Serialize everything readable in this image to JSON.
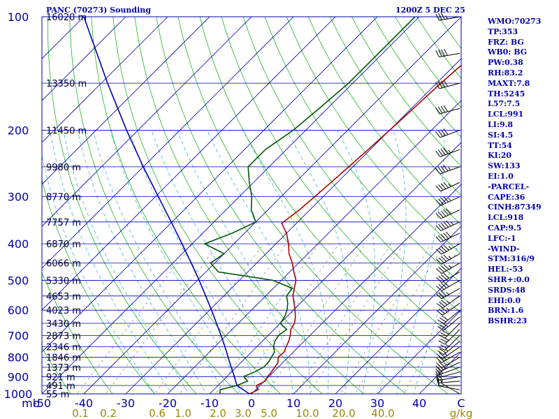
{
  "header": {
    "title": "PANC (70273) Sounding",
    "time": "1200Z  5 DEC 25"
  },
  "indices": [
    "WMO:70273",
    "TP:353",
    "FRZ: BG",
    "WB0: BG",
    "PW:0.38",
    "RH:83.2",
    "MAXT:7.8",
    "TH:5245",
    "L57:7.5",
    "LCL:991",
    "LI:9.8",
    "SI:4.5",
    "TT:54",
    "KI:20",
    "SW:133",
    "EI:1.0",
    "-PARCEL-",
    "CAPE:36",
    "CINH:87349",
    "LCL:918",
    "CAP:9.5",
    "LFC:-1",
    "-WIND-",
    "STM:316/9",
    "HEL:-53",
    "SHR+:0.0",
    "SRDS:48",
    "EHI:0.0",
    "BRN:1.6",
    "BSHR:23"
  ],
  "colors": {
    "isobar": "#0000aa",
    "isotherm": "#0000aa",
    "dry_adiabat": "#00aa00",
    "moist_adiabat": "#22aacc",
    "mixing_ratio": "#777777",
    "temperature": "#aa0000",
    "dewpoint": "#005500",
    "parcel": "#0000aa",
    "wind_barb": "#000000",
    "axis_text": "#0000aa",
    "mixing_text": "#998800"
  },
  "chart_data": {
    "type": "skew-t log-p",
    "xunit": "C",
    "pressure_range": [
      1000,
      100
    ],
    "temperature_range": [
      -50,
      50
    ],
    "pressure_ticks": [
      100,
      200,
      300,
      400,
      500,
      600,
      700,
      800,
      900,
      1000
    ],
    "temperature_ticks": [
      "-50",
      "-40",
      "-30",
      "-20",
      "-10",
      "0",
      "10",
      "20",
      "30",
      "40"
    ],
    "axis_corner_labels": {
      "left": "mb",
      "right": "C"
    },
    "height_labels": [
      {
        "p": 100,
        "label": "16020 m"
      },
      {
        "p": 150,
        "label": "13350 m"
      },
      {
        "p": 200,
        "label": "11450 m"
      },
      {
        "p": 250,
        "label": "9980 m"
      },
      {
        "p": 300,
        "label": "8770 m"
      },
      {
        "p": 350,
        "label": "7757 m"
      },
      {
        "p": 400,
        "label": "6870 m"
      },
      {
        "p": 450,
        "label": "6066 m"
      },
      {
        "p": 500,
        "label": "5330 m"
      },
      {
        "p": 550,
        "label": "4653 m"
      },
      {
        "p": 600,
        "label": "4023 m"
      },
      {
        "p": 650,
        "label": "3430 m"
      },
      {
        "p": 700,
        "label": "2873 m"
      },
      {
        "p": 750,
        "label": "2346 m"
      },
      {
        "p": 800,
        "label": "1846 m"
      },
      {
        "p": 850,
        "label": "1373 m"
      },
      {
        "p": 900,
        "label": "921 m"
      },
      {
        "p": 950,
        "label": "491 m"
      },
      {
        "p": 1000,
        "label": "55 m"
      }
    ],
    "mixing_ratio_labels": [
      "0.1",
      "0.2",
      "0.6",
      "1.0",
      "2.0",
      "3.0",
      "5.0",
      "10.0",
      "20.0",
      "40.0"
    ],
    "mixing_ratio_unit": "g/kg",
    "series": [
      {
        "name": "temperature",
        "points": [
          [
            1000,
            -0.5
          ],
          [
            975,
            0.6
          ],
          [
            950,
            -0.8
          ],
          [
            925,
            0.2
          ],
          [
            900,
            -0.3
          ],
          [
            875,
            -0.5
          ],
          [
            850,
            -0.8
          ],
          [
            825,
            -1.2
          ],
          [
            800,
            -2.4
          ],
          [
            775,
            -2.2
          ],
          [
            750,
            -3.0
          ],
          [
            725,
            -3.7
          ],
          [
            700,
            -4.7
          ],
          [
            675,
            -6.0
          ],
          [
            650,
            -6.6
          ],
          [
            625,
            -7.9
          ],
          [
            600,
            -9.6
          ],
          [
            575,
            -11.5
          ],
          [
            550,
            -13.5
          ],
          [
            525,
            -15.0
          ],
          [
            500,
            -16.5
          ],
          [
            475,
            -19.0
          ],
          [
            450,
            -21.5
          ],
          [
            425,
            -24.5
          ],
          [
            400,
            -27.0
          ],
          [
            375,
            -30.0
          ],
          [
            353,
            -33.5
          ],
          [
            325,
            -32.5
          ],
          [
            300,
            -32.0
          ],
          [
            275,
            -31.5
          ],
          [
            250,
            -31.0
          ],
          [
            225,
            -30.5
          ],
          [
            200,
            -30.0
          ],
          [
            175,
            -29.5
          ],
          [
            150,
            -29.0
          ],
          [
            125,
            -28.0
          ],
          [
            100,
            -27.0
          ]
        ]
      },
      {
        "name": "dewpoint",
        "points": [
          [
            1000,
            -7.5
          ],
          [
            975,
            -8.5
          ],
          [
            950,
            -5.5
          ],
          [
            925,
            -4.0
          ],
          [
            900,
            -6.0
          ],
          [
            875,
            -4.5
          ],
          [
            850,
            -3.5
          ],
          [
            825,
            -3.5
          ],
          [
            800,
            -4.0
          ],
          [
            775,
            -4.5
          ],
          [
            750,
            -6.0
          ],
          [
            725,
            -7.0
          ],
          [
            700,
            -7.5
          ],
          [
            675,
            -7.0
          ],
          [
            650,
            -10.0
          ],
          [
            625,
            -10.5
          ],
          [
            600,
            -11.5
          ],
          [
            575,
            -13.0
          ],
          [
            550,
            -15.0
          ],
          [
            525,
            -15.5
          ],
          [
            500,
            -22.0
          ],
          [
            475,
            -37.0
          ],
          [
            450,
            -41.0
          ],
          [
            425,
            -40.0
          ],
          [
            400,
            -47.0
          ],
          [
            375,
            -43.0
          ],
          [
            350,
            -40.0
          ],
          [
            325,
            -44.0
          ],
          [
            300,
            -47.0
          ],
          [
            275,
            -51.0
          ],
          [
            250,
            -55.0
          ],
          [
            225,
            -55.0
          ],
          [
            200,
            -53.0
          ],
          [
            175,
            -52.0
          ],
          [
            150,
            -51.0
          ],
          [
            125,
            -51.0
          ],
          [
            100,
            -51.0
          ]
        ]
      },
      {
        "name": "parcel",
        "points": [
          [
            1000,
            -0.5
          ],
          [
            950,
            -5.5
          ],
          [
            900,
            -8.2
          ],
          [
            850,
            -11.2
          ],
          [
            800,
            -14.3
          ],
          [
            750,
            -17.6
          ],
          [
            700,
            -21.2
          ],
          [
            650,
            -25.2
          ],
          [
            600,
            -29.5
          ],
          [
            550,
            -34.3
          ],
          [
            500,
            -39.6
          ],
          [
            450,
            -45.6
          ],
          [
            400,
            -52.4
          ],
          [
            350,
            -60.2
          ],
          [
            300,
            -69.3
          ],
          [
            250,
            -80.0
          ],
          [
            200,
            -92.7
          ],
          [
            150,
            -108.5
          ],
          [
            100,
            -130.0
          ]
        ]
      }
    ],
    "wind_barbs": [
      {
        "p": 1000,
        "dir": 300,
        "spd": 5
      },
      {
        "p": 975,
        "dir": 280,
        "spd": 10
      },
      {
        "p": 950,
        "dir": 270,
        "spd": 10
      },
      {
        "p": 925,
        "dir": 265,
        "spd": 15
      },
      {
        "p": 900,
        "dir": 260,
        "spd": 20
      },
      {
        "p": 875,
        "dir": 255,
        "spd": 20
      },
      {
        "p": 850,
        "dir": 250,
        "spd": 20
      },
      {
        "p": 825,
        "dir": 245,
        "spd": 25
      },
      {
        "p": 800,
        "dir": 240,
        "spd": 25
      },
      {
        "p": 775,
        "dir": 240,
        "spd": 25
      },
      {
        "p": 750,
        "dir": 235,
        "spd": 25
      },
      {
        "p": 725,
        "dir": 230,
        "spd": 25
      },
      {
        "p": 700,
        "dir": 225,
        "spd": 25
      },
      {
        "p": 675,
        "dir": 225,
        "spd": 30
      },
      {
        "p": 650,
        "dir": 225,
        "spd": 30
      },
      {
        "p": 625,
        "dir": 230,
        "spd": 30
      },
      {
        "p": 600,
        "dir": 230,
        "spd": 30
      },
      {
        "p": 575,
        "dir": 235,
        "spd": 35
      },
      {
        "p": 550,
        "dir": 235,
        "spd": 35
      },
      {
        "p": 525,
        "dir": 240,
        "spd": 35
      },
      {
        "p": 500,
        "dir": 240,
        "spd": 40
      },
      {
        "p": 475,
        "dir": 240,
        "spd": 40
      },
      {
        "p": 450,
        "dir": 240,
        "spd": 45
      },
      {
        "p": 425,
        "dir": 240,
        "spd": 45
      },
      {
        "p": 400,
        "dir": 240,
        "spd": 45
      },
      {
        "p": 375,
        "dir": 245,
        "spd": 50
      },
      {
        "p": 350,
        "dir": 245,
        "spd": 55
      },
      {
        "p": 325,
        "dir": 245,
        "spd": 50
      },
      {
        "p": 300,
        "dir": 245,
        "spd": 45
      },
      {
        "p": 275,
        "dir": 245,
        "spd": 45
      },
      {
        "p": 250,
        "dir": 250,
        "spd": 45
      },
      {
        "p": 225,
        "dir": 250,
        "spd": 45
      },
      {
        "p": 200,
        "dir": 250,
        "spd": 40
      },
      {
        "p": 175,
        "dir": 255,
        "spd": 40
      },
      {
        "p": 150,
        "dir": 255,
        "spd": 40
      },
      {
        "p": 125,
        "dir": 260,
        "spd": 40
      },
      {
        "p": 100,
        "dir": 260,
        "spd": 35
      }
    ]
  }
}
